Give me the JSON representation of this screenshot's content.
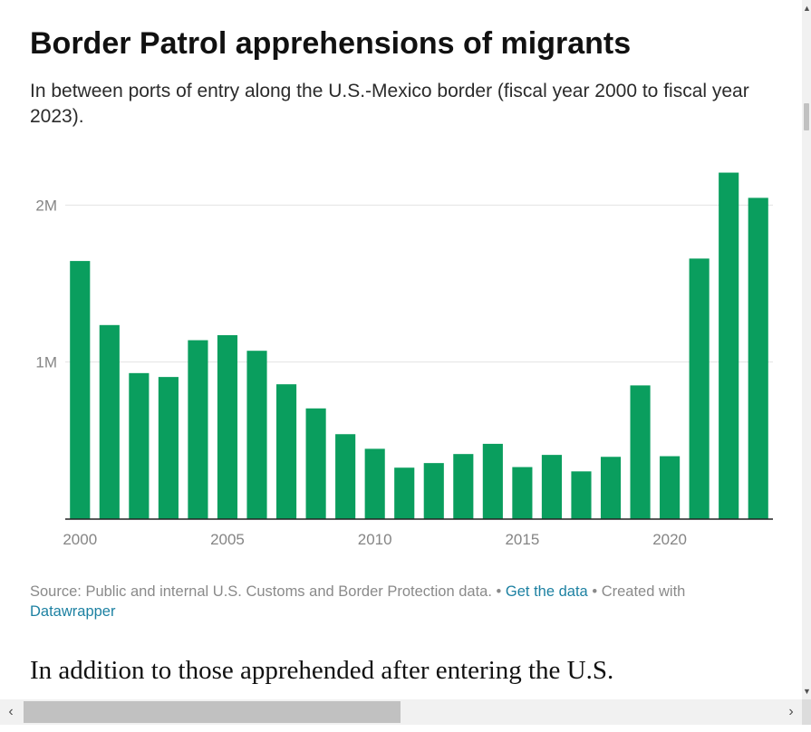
{
  "page": {
    "footer": {
      "source_text": "Source: Public and internal U.S. Customs and Border Protection data.",
      "separator": "•",
      "get_data_label": "Get the data",
      "created_with_text": "Created with",
      "datawrapper_label": "Datawrapper"
    },
    "next_heading": "In addition to those apprehended after entering the U.S.",
    "scrollbar_icons": {
      "up": "arrow-up-icon",
      "down": "arrow-down-icon",
      "left": "arrow-left-icon",
      "right": "arrow-right-icon"
    }
  },
  "chart_data": {
    "type": "bar",
    "title": "Border Patrol apprehensions of migrants",
    "subtitle": "In between ports of entry along the U.S.-Mexico border (fiscal year 2000 to fiscal year 2023).",
    "xlabel": "",
    "ylabel": "",
    "bar_color": "#0a9e5e",
    "grid": true,
    "x": [
      2000,
      2001,
      2002,
      2003,
      2004,
      2005,
      2006,
      2007,
      2008,
      2009,
      2010,
      2011,
      2012,
      2013,
      2014,
      2015,
      2016,
      2017,
      2018,
      2019,
      2020,
      2021,
      2022,
      2023
    ],
    "values": [
      1643679,
      1235718,
      929809,
      905065,
      1139282,
      1171396,
      1071972,
      858638,
      705005,
      540865,
      447731,
      327577,
      356873,
      414397,
      479371,
      331333,
      408870,
      303916,
      396579,
      851508,
      400651,
      1659206,
      2206436,
      2045838
    ],
    "x_ticks": [
      2000,
      2005,
      2010,
      2015,
      2020
    ],
    "x_tick_labels": [
      "2000",
      "2005",
      "2010",
      "2015",
      "2020"
    ],
    "y_ticks": [
      1000000,
      2000000
    ],
    "y_tick_labels": [
      "1M",
      "2M"
    ],
    "ylim": [
      0,
      2250000
    ]
  }
}
